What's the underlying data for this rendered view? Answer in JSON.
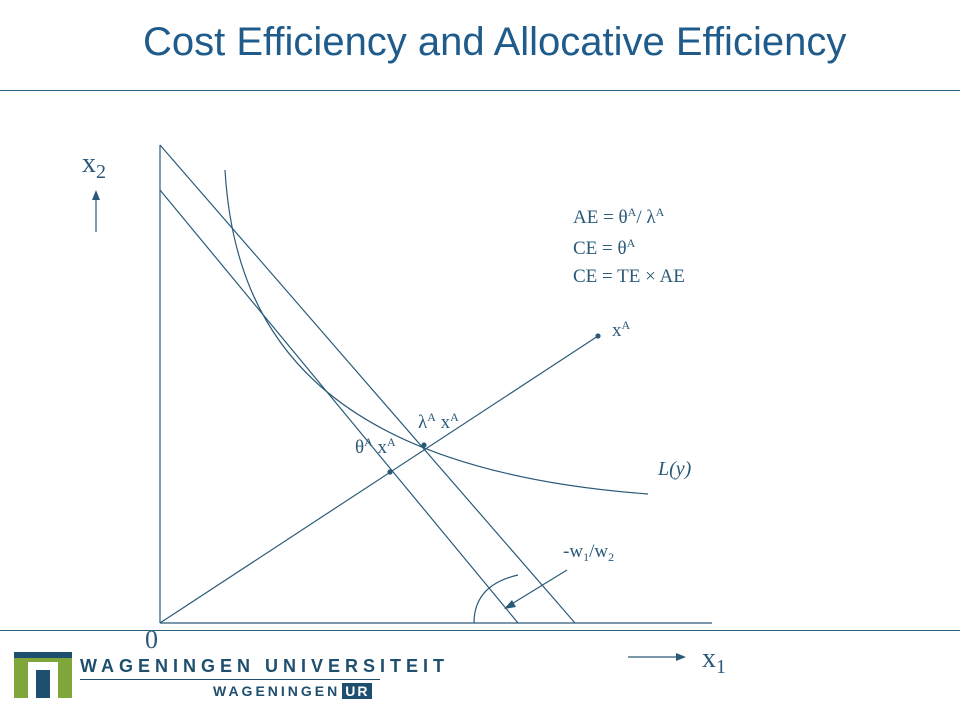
{
  "title": "Cost Efficiency and Allocative Efficiency",
  "axes": {
    "x_label": "x",
    "x_sub": "1",
    "y_label": "x",
    "y_sub": "2",
    "origin": "0"
  },
  "equations": {
    "ae_lhs": "AE = θ",
    "ae_sup1": "A",
    "ae_mid": "/ λ",
    "ae_sup2": "A",
    "ce1_lhs": "CE = θ",
    "ce1_sup": "A",
    "ce2": "CE = TE × AE"
  },
  "points": {
    "xa_base": "x",
    "xa_sup": "A",
    "lambda_base": "λ",
    "lambda_sup": "A",
    "lambda_x": " x",
    "lambda_x_sup": "A",
    "theta_base": "θ",
    "theta_sup": "A",
    "theta_x": " x",
    "theta_x_sup": "A"
  },
  "isoquant_label": "L(y)",
  "slope_label": {
    "prefix": "-w",
    "sub1": "1",
    "mid": "/w",
    "sub2": "2"
  },
  "logo": {
    "line1": "WAGENINGEN UNIVERSITEIT",
    "line2_a": "WAGENINGEN",
    "line2_b": "UR"
  },
  "colors": {
    "line": "#2b5a78",
    "title": "#1f5c8b",
    "logo_green": "#7fa63a",
    "logo_blue": "#1f4f6e"
  }
}
